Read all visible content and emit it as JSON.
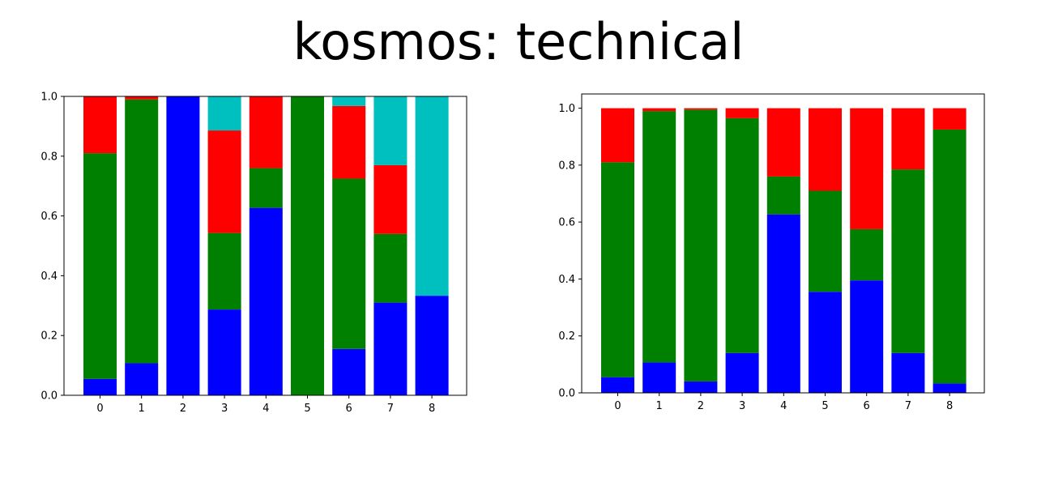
{
  "title": "kosmos: technical",
  "colors": {
    "blue": "#0000ff",
    "green": "#008000",
    "red": "#ff0000",
    "cyan": "#00bfbf"
  },
  "chart_data": [
    {
      "type": "bar",
      "stacked": true,
      "categories": [
        "0",
        "1",
        "2",
        "3",
        "4",
        "5",
        "6",
        "7",
        "8"
      ],
      "ylim": [
        0,
        1.0
      ],
      "yticks": [
        "0.0",
        "0.2",
        "0.4",
        "0.6",
        "0.8",
        "1.0"
      ],
      "series": [
        {
          "color": "blue",
          "values": [
            0.055,
            0.107,
            1.0,
            0.287,
            0.627,
            0.0,
            0.155,
            0.31,
            0.333
          ]
        },
        {
          "color": "green",
          "values": [
            0.755,
            0.883,
            0.0,
            0.256,
            0.133,
            1.0,
            0.57,
            0.23,
            0.0
          ]
        },
        {
          "color": "red",
          "values": [
            0.19,
            0.01,
            0.0,
            0.343,
            0.24,
            0.0,
            0.243,
            0.23,
            0.0
          ]
        },
        {
          "color": "cyan",
          "values": [
            0.0,
            0.0,
            0.0,
            0.114,
            0.0,
            0.0,
            0.032,
            0.23,
            0.667
          ]
        }
      ]
    },
    {
      "type": "bar",
      "stacked": true,
      "categories": [
        "0",
        "1",
        "2",
        "3",
        "4",
        "5",
        "6",
        "7",
        "8"
      ],
      "ylim": [
        0,
        1.05
      ],
      "yticks": [
        "0.0",
        "0.2",
        "0.4",
        "0.6",
        "0.8",
        "1.0"
      ],
      "series": [
        {
          "color": "blue",
          "values": [
            0.055,
            0.107,
            0.04,
            0.14,
            0.627,
            0.355,
            0.395,
            0.14,
            0.033
          ]
        },
        {
          "color": "green",
          "values": [
            0.755,
            0.883,
            0.955,
            0.825,
            0.133,
            0.355,
            0.18,
            0.645,
            0.892
          ]
        },
        {
          "color": "red",
          "values": [
            0.19,
            0.01,
            0.005,
            0.035,
            0.24,
            0.29,
            0.425,
            0.215,
            0.075
          ]
        }
      ]
    }
  ]
}
